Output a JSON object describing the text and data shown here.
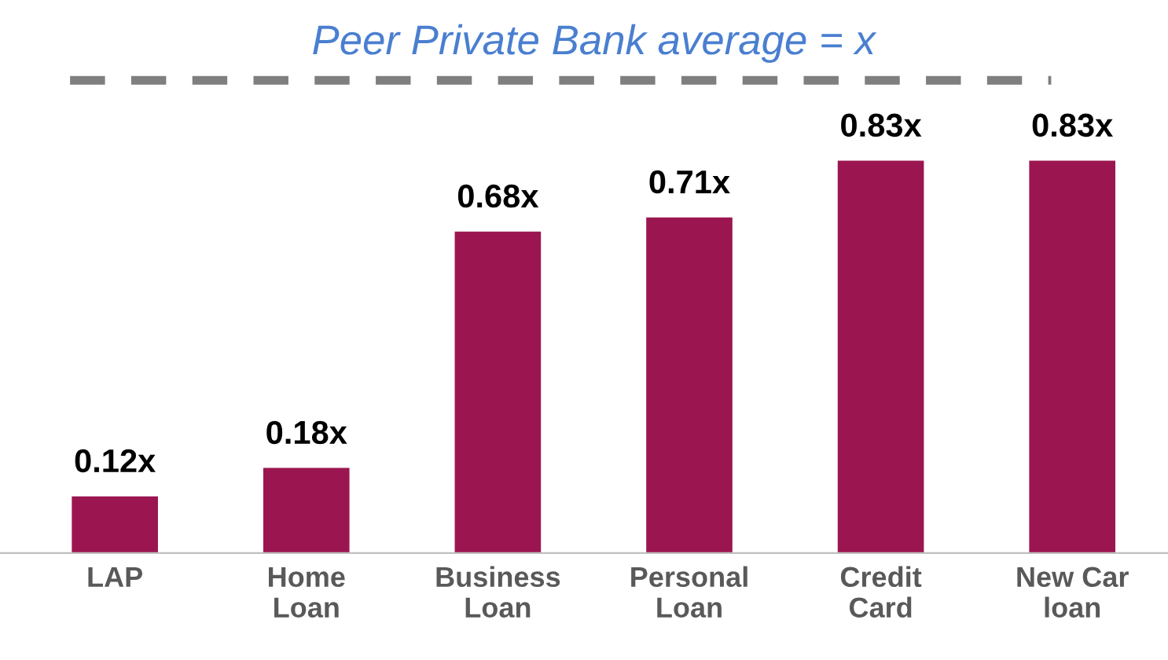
{
  "chart_data": {
    "type": "bar",
    "categories": [
      "LAP",
      "Home\nLoan",
      "Business\nLoan",
      "Personal\nLoan",
      "Credit\nCard",
      "New Car\nloan"
    ],
    "values": [
      0.12,
      0.18,
      0.68,
      0.71,
      0.83,
      0.83
    ],
    "value_labels": [
      "0.12x",
      "0.18x",
      "0.68x",
      "0.71x",
      "0.83x",
      "0.83x"
    ],
    "color": "#9b1650",
    "ref_lines": [
      {
        "axis": "y",
        "value": 1,
        "label": "Peer Private Bank average = x",
        "color": "#7f7f7f",
        "line_style": "dashed"
      }
    ],
    "grid": false
  }
}
